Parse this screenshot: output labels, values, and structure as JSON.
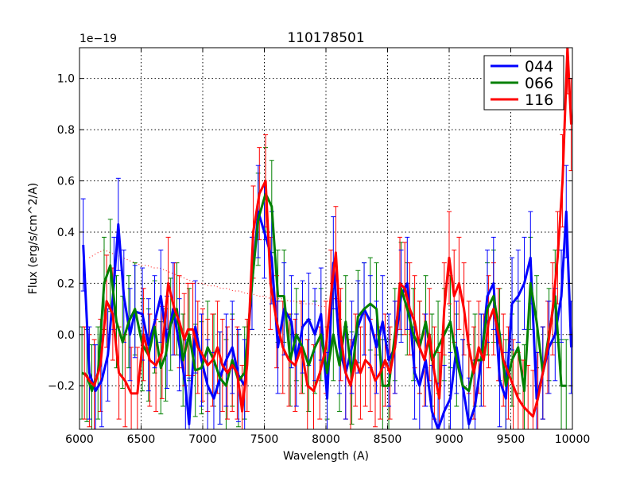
{
  "chart_data": {
    "type": "line",
    "title": "110178501",
    "xlabel": "Wavelength (A)",
    "ylabel": "Flux (erg/s/cm^2/A)",
    "offset_label": "1e−19",
    "xlim": [
      6000,
      10000
    ],
    "ylim": [
      -0.37,
      1.12
    ],
    "grid": true,
    "legend_position": "top-right",
    "x_ticks": [
      6000,
      6500,
      7000,
      7500,
      8000,
      8500,
      9000,
      9500,
      10000
    ],
    "y_ticks": [
      -0.2,
      0.0,
      0.2,
      0.4,
      0.6,
      0.8,
      1.0
    ],
    "x_tick_labels": [
      "6000",
      "6500",
      "7000",
      "7500",
      "8000",
      "8500",
      "9000",
      "9500",
      "10000"
    ],
    "y_tick_labels": [
      "−0.2",
      "0.0",
      "0.2",
      "0.4",
      "0.6",
      "0.8",
      "1.0"
    ],
    "series": [
      {
        "name": "044",
        "color": "#0000ff",
        "x": [
          6030,
          6080,
          6130,
          6180,
          6230,
          6280,
          6315,
          6360,
          6410,
          6450,
          6510,
          6560,
          6610,
          6660,
          6710,
          6760,
          6810,
          6860,
          6890,
          6940,
          6990,
          7040,
          7090,
          7140,
          7190,
          7240,
          7290,
          7340,
          7400,
          7450,
          7500,
          7560,
          7610,
          7660,
          7720,
          7760,
          7810,
          7860,
          7910,
          7960,
          8010,
          8060,
          8110,
          8160,
          8210,
          8260,
          8310,
          8360,
          8410,
          8460,
          8510,
          8560,
          8610,
          8660,
          8720,
          8760,
          8810,
          8860,
          8910,
          8960,
          9010,
          9060,
          9110,
          9160,
          9210,
          9260,
          9310,
          9360,
          9410,
          9460,
          9510,
          9560,
          9610,
          9660,
          9710,
          9760,
          9810,
          9860,
          9910,
          9950,
          9990
        ],
        "values": [
          0.35,
          -0.15,
          -0.22,
          -0.18,
          -0.08,
          0.2,
          0.43,
          0.15,
          0.0,
          0.09,
          0.08,
          -0.04,
          0.05,
          0.15,
          -0.03,
          0.1,
          -0.04,
          -0.2,
          -0.35,
          0.03,
          -0.1,
          -0.2,
          -0.25,
          -0.17,
          -0.1,
          -0.05,
          -0.16,
          -0.2,
          0.2,
          0.48,
          0.4,
          0.3,
          -0.05,
          0.1,
          0.05,
          -0.1,
          0.03,
          0.06,
          0.0,
          0.08,
          -0.25,
          0.28,
          -0.05,
          -0.15,
          -0.05,
          0.03,
          0.1,
          0.05,
          -0.05,
          0.05,
          -0.1,
          -0.05,
          0.15,
          0.2,
          -0.15,
          -0.2,
          -0.1,
          -0.3,
          -0.37,
          -0.3,
          -0.25,
          -0.05,
          -0.2,
          -0.35,
          -0.28,
          -0.1,
          0.15,
          0.2,
          -0.18,
          -0.25,
          0.12,
          0.15,
          0.2,
          0.3,
          -0.25,
          -0.15,
          -0.05,
          0.0,
          0.15,
          0.48,
          -0.05
        ]
      },
      {
        "name": "066",
        "color": "#008000",
        "x": [
          6020,
          6060,
          6100,
          6150,
          6200,
          6250,
          6300,
          6350,
          6400,
          6450,
          6510,
          6560,
          6610,
          6660,
          6700,
          6740,
          6790,
          6840,
          6890,
          6940,
          6990,
          7040,
          7090,
          7140,
          7190,
          7240,
          7290,
          7340,
          7400,
          7450,
          7510,
          7560,
          7610,
          7660,
          7710,
          7760,
          7810,
          7860,
          7910,
          7960,
          8010,
          8060,
          8110,
          8160,
          8210,
          8260,
          8310,
          8360,
          8410,
          8460,
          8510,
          8560,
          8610,
          8660,
          8710,
          8760,
          8810,
          8860,
          8910,
          8960,
          9010,
          9060,
          9110,
          9160,
          9210,
          9260,
          9310,
          9360,
          9410,
          9460,
          9510,
          9560,
          9610,
          9660,
          9710,
          9760,
          9810,
          9860,
          9910,
          9950
        ],
        "values": [
          -0.15,
          -0.16,
          -0.22,
          -0.15,
          0.2,
          0.27,
          0.05,
          -0.03,
          0.05,
          0.1,
          -0.04,
          -0.08,
          0.03,
          -0.13,
          -0.08,
          0.04,
          0.1,
          -0.1,
          0.0,
          -0.14,
          -0.13,
          -0.05,
          -0.1,
          -0.17,
          -0.2,
          -0.1,
          -0.18,
          -0.15,
          0.2,
          0.45,
          0.55,
          0.5,
          0.15,
          0.15,
          -0.1,
          0.0,
          -0.05,
          -0.12,
          -0.05,
          0.0,
          -0.15,
          0.0,
          -0.12,
          0.05,
          -0.17,
          0.07,
          0.1,
          0.12,
          0.1,
          -0.2,
          -0.2,
          0.0,
          0.18,
          0.1,
          0.0,
          -0.05,
          0.05,
          -0.1,
          -0.05,
          0.0,
          0.05,
          -0.1,
          -0.2,
          -0.22,
          -0.1,
          -0.1,
          0.1,
          0.15,
          0.0,
          -0.2,
          -0.1,
          -0.05,
          -0.22,
          0.2,
          0.05,
          -0.15,
          0.0,
          0.15,
          -0.2,
          -0.2
        ]
      },
      {
        "name": "116",
        "color": "#ff0000",
        "x": [
          6040,
          6080,
          6120,
          6170,
          6220,
          6270,
          6320,
          6370,
          6420,
          6470,
          6520,
          6570,
          6620,
          6670,
          6720,
          6770,
          6810,
          6850,
          6880,
          6920,
          6960,
          7000,
          7040,
          7080,
          7120,
          7160,
          7200,
          7240,
          7280,
          7320,
          7360,
          7410,
          7460,
          7510,
          7550,
          7600,
          7650,
          7700,
          7750,
          7800,
          7850,
          7900,
          7950,
          8000,
          8040,
          8080,
          8120,
          8160,
          8200,
          8240,
          8280,
          8320,
          8360,
          8400,
          8440,
          8480,
          8520,
          8560,
          8600,
          8640,
          8680,
          8720,
          8760,
          8800,
          8840,
          8880,
          8920,
          8960,
          9000,
          9040,
          9080,
          9120,
          9160,
          9200,
          9240,
          9280,
          9320,
          9360,
          9400,
          9440,
          9480,
          9520,
          9560,
          9600,
          9640,
          9680,
          9720,
          9760,
          9800,
          9840,
          9880,
          9920,
          9960,
          9990
        ],
        "values": [
          -0.15,
          -0.18,
          -0.2,
          -0.12,
          0.13,
          0.08,
          -0.15,
          -0.18,
          -0.23,
          -0.23,
          0.0,
          -0.1,
          -0.12,
          -0.07,
          0.2,
          0.1,
          0.05,
          -0.02,
          0.02,
          0.02,
          -0.05,
          -0.08,
          -0.12,
          -0.1,
          -0.05,
          -0.12,
          -0.15,
          -0.12,
          -0.15,
          -0.3,
          -0.12,
          0.4,
          0.55,
          0.6,
          0.2,
          0.05,
          -0.05,
          -0.1,
          -0.12,
          -0.05,
          -0.2,
          -0.22,
          -0.15,
          -0.05,
          0.15,
          0.32,
          0.0,
          -0.15,
          -0.2,
          -0.1,
          -0.15,
          -0.1,
          -0.12,
          -0.18,
          -0.15,
          -0.1,
          -0.15,
          -0.05,
          0.2,
          0.18,
          0.1,
          0.05,
          -0.05,
          -0.1,
          0.0,
          -0.15,
          -0.25,
          0.1,
          0.3,
          0.15,
          0.2,
          0.1,
          -0.05,
          -0.15,
          -0.05,
          -0.1,
          0.05,
          0.1,
          0.0,
          -0.1,
          -0.15,
          -0.2,
          -0.25,
          -0.28,
          -0.3,
          -0.32,
          -0.25,
          -0.15,
          -0.05,
          0.1,
          0.3,
          0.6,
          1.12,
          0.82
        ]
      }
    ],
    "error_bar_series": [
      "066",
      "116",
      "044"
    ],
    "error_bar_color_by_series": true,
    "error_half_width": 0.18,
    "reference_curve": {
      "style": "dotted",
      "color": "#ff0000",
      "x": [
        6080,
        6150,
        6200,
        6250,
        6300,
        6350,
        6400,
        6450,
        6500,
        6550,
        6600,
        6650,
        6700,
        6750,
        6800,
        6850,
        6900,
        6950,
        7000,
        7050,
        7100,
        7150,
        7200,
        7250,
        7300,
        7350,
        7400,
        7450,
        7500,
        7550,
        7600,
        7650,
        7700,
        7750,
        7800,
        7850,
        7900,
        7950,
        8000
      ],
      "values": [
        0.3,
        0.32,
        0.33,
        0.32,
        0.31,
        0.3,
        0.29,
        0.28,
        0.27,
        0.27,
        0.26,
        0.26,
        0.25,
        0.24,
        0.23,
        0.22,
        0.21,
        0.2,
        0.2,
        0.19,
        0.19,
        0.18,
        0.18,
        0.17,
        0.17,
        0.16,
        0.16,
        0.15,
        0.15,
        0.14,
        0.14,
        0.14,
        0.13,
        0.13,
        0.12,
        0.12,
        0.12,
        0.11,
        0.11
      ]
    }
  }
}
